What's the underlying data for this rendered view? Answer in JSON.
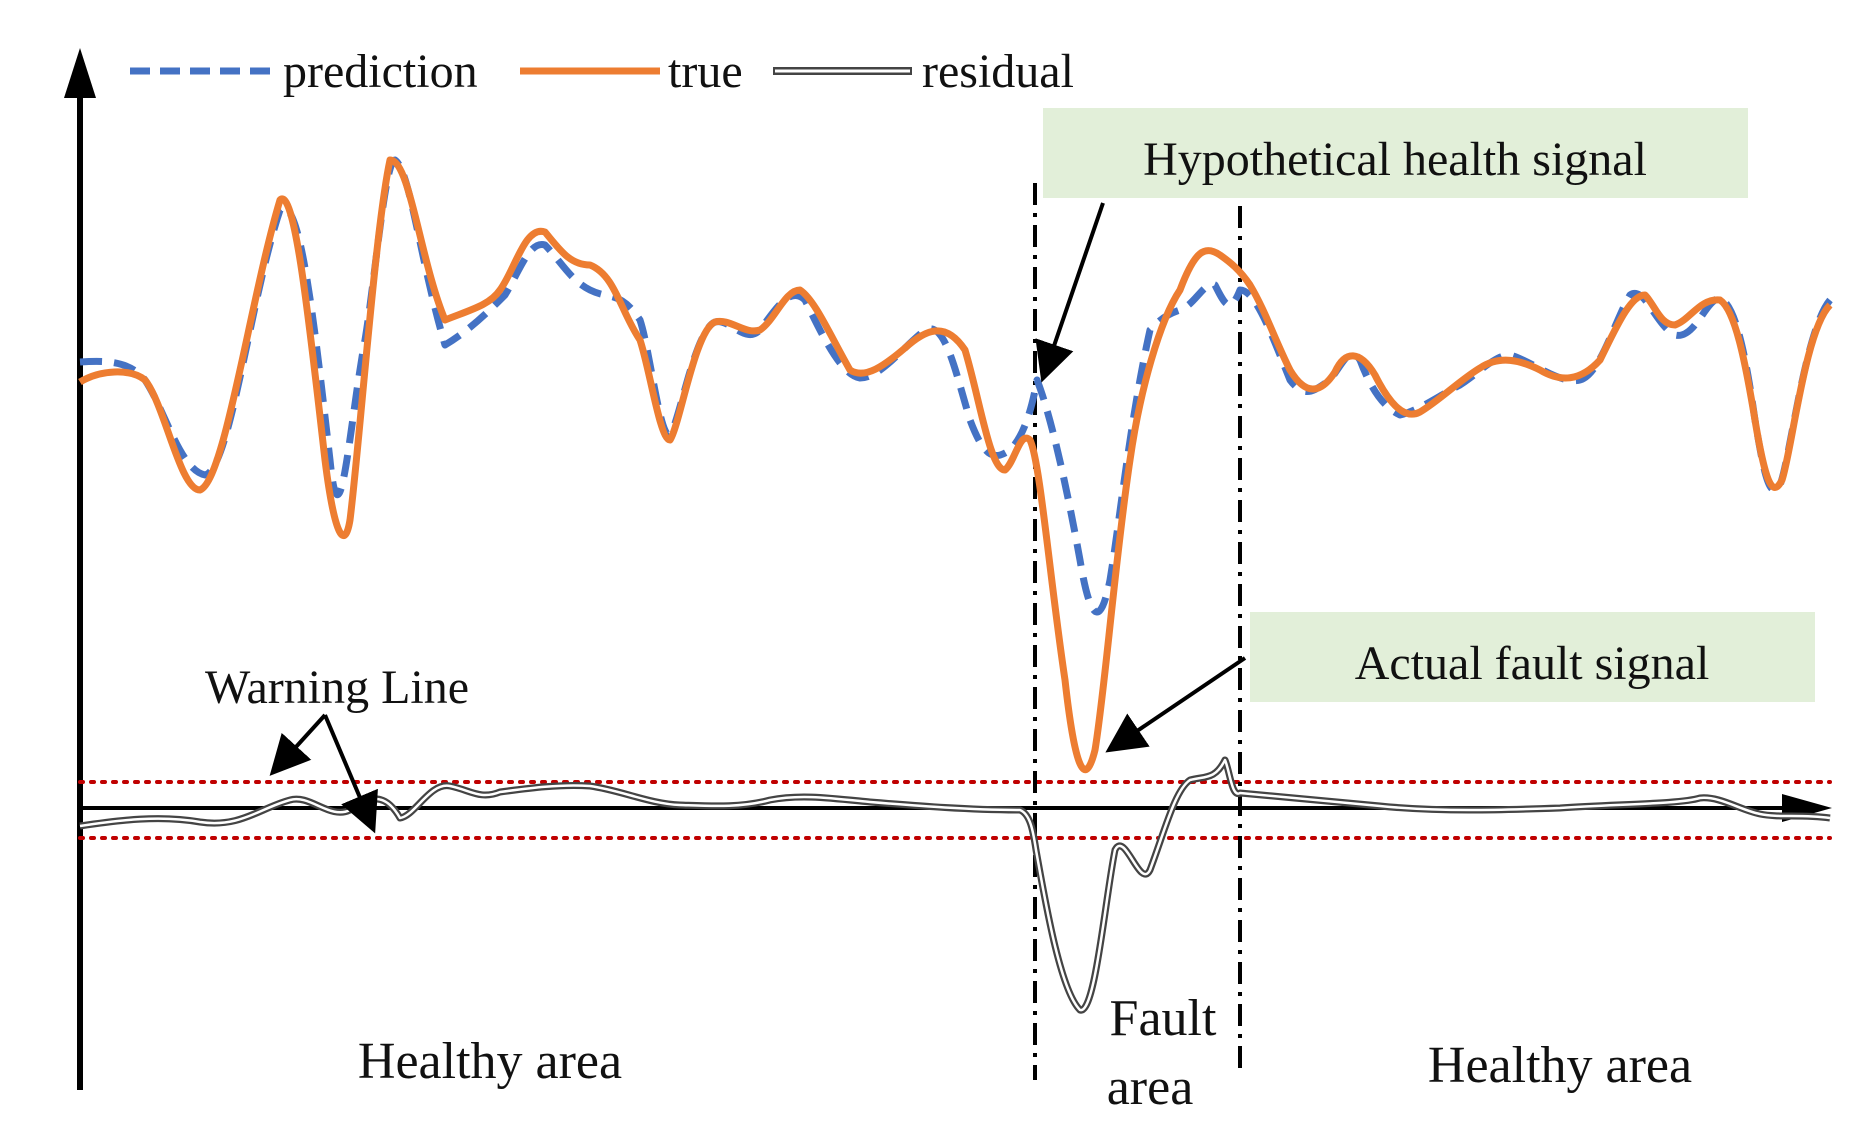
{
  "legend": [
    {
      "label": "prediction",
      "style": "dashed",
      "color": "#4472c4"
    },
    {
      "label": "true",
      "style": "solid",
      "color": "#ed7d31"
    },
    {
      "label": "residual",
      "style": "double-line",
      "color": "#555555"
    }
  ],
  "callouts": {
    "hypothetical": {
      "label": "Hypothetical health signal",
      "bg": "#e2efd9"
    },
    "actual": {
      "label": "Actual fault signal",
      "bg": "#e2efd9"
    }
  },
  "warning": {
    "label": "Warning Line",
    "color": "#c00000"
  },
  "areas": {
    "left": "Healthy area",
    "fault_line1": "Fault",
    "fault_line2": "area",
    "right": "Healthy area"
  }
}
